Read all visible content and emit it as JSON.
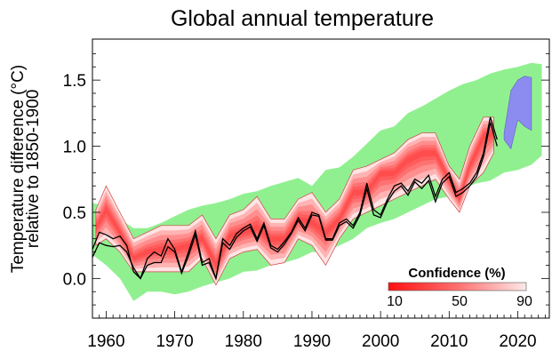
{
  "chart_data": {
    "type": "area",
    "title": "Global annual temperature",
    "ylabel": [
      "Temperature difference (°C)",
      "relative to 1850-1900"
    ],
    "xlabel": "",
    "xlim": [
      1958,
      2024.6
    ],
    "ylim": [
      -0.3,
      1.81
    ],
    "xticks": [
      1960,
      1970,
      1980,
      1990,
      2000,
      2010,
      2020
    ],
    "xtick_labels": [
      "1960",
      "1970",
      "1980",
      "1990",
      "2000",
      "2010",
      "2020"
    ],
    "yticks": [
      0.0,
      0.5,
      1.0,
      1.5
    ],
    "ytick_labels": [
      "0.0",
      "0.5",
      "1.0",
      "1.5"
    ],
    "grid": false,
    "colors": {
      "green_band": "#90f090",
      "red_band": "#ff2020",
      "observations": "#000000",
      "blue_band": "#8c8cf0"
    },
    "green_band": {
      "x": [
        1958,
        1960,
        1962,
        1964,
        1966,
        1968,
        1970,
        1972,
        1974,
        1976,
        1978,
        1980,
        1982,
        1984,
        1986,
        1988,
        1990,
        1992,
        1994,
        1996,
        1998,
        2000,
        2002,
        2004,
        2006,
        2008,
        2010,
        2012,
        2014,
        2016,
        2018,
        2020,
        2022,
        2023.5
      ],
      "upper": [
        0.57,
        0.55,
        0.45,
        0.38,
        0.38,
        0.42,
        0.47,
        0.52,
        0.55,
        0.57,
        0.6,
        0.64,
        0.66,
        0.7,
        0.73,
        0.76,
        0.7,
        0.82,
        0.84,
        0.92,
        1.02,
        1.12,
        1.15,
        1.25,
        1.3,
        1.36,
        1.42,
        1.47,
        1.5,
        1.55,
        1.58,
        1.6,
        1.63,
        1.62
      ],
      "lower": [
        0.18,
        0.1,
        0.0,
        -0.17,
        -0.1,
        -0.1,
        -0.12,
        -0.1,
        -0.06,
        -0.03,
        0.0,
        0.05,
        0.06,
        0.1,
        0.12,
        0.15,
        0.2,
        0.2,
        0.25,
        0.3,
        0.38,
        0.42,
        0.45,
        0.5,
        0.55,
        0.6,
        0.62,
        0.68,
        0.72,
        0.74,
        0.8,
        0.82,
        0.86,
        0.93
      ]
    },
    "red_band": {
      "x": [
        1958.5,
        1960,
        1962,
        1964,
        1966,
        1968,
        1970,
        1972,
        1974,
        1976,
        1978,
        1980,
        1982,
        1984,
        1986,
        1988,
        1990,
        1992,
        1994,
        1996,
        1998,
        2000,
        2002,
        2004,
        2006,
        2008,
        2010,
        2011.5,
        2013,
        2015,
        2016.5
      ],
      "center": [
        0.38,
        0.52,
        0.35,
        0.15,
        0.2,
        0.22,
        0.22,
        0.25,
        0.3,
        0.1,
        0.32,
        0.35,
        0.38,
        0.3,
        0.3,
        0.45,
        0.42,
        0.35,
        0.45,
        0.65,
        0.65,
        0.8,
        0.8,
        0.9,
        0.95,
        0.95,
        0.75,
        0.6,
        0.85,
        1.08,
        1.1
      ],
      "lower": [
        0.25,
        0.3,
        0.2,
        0.05,
        0.05,
        0.05,
        0.05,
        0.05,
        0.15,
        -0.05,
        0.15,
        0.2,
        0.22,
        0.1,
        0.12,
        0.3,
        0.25,
        0.1,
        0.3,
        0.45,
        0.5,
        0.55,
        0.6,
        0.65,
        0.7,
        0.75,
        0.6,
        0.5,
        0.7,
        0.8,
        0.95
      ],
      "upper": [
        0.52,
        0.7,
        0.5,
        0.3,
        0.35,
        0.4,
        0.4,
        0.4,
        0.48,
        0.3,
        0.48,
        0.52,
        0.62,
        0.45,
        0.45,
        0.6,
        0.65,
        0.5,
        0.6,
        0.82,
        0.85,
        0.9,
        0.95,
        1.05,
        1.1,
        1.1,
        0.85,
        0.75,
        1.0,
        1.22,
        1.22
      ]
    },
    "observations": {
      "x": [
        1958,
        1959,
        1960,
        1961,
        1962,
        1963,
        1964,
        1965,
        1966,
        1967,
        1968,
        1969,
        1970,
        1971,
        1972,
        1973,
        1974,
        1975,
        1976,
        1977,
        1978,
        1979,
        1980,
        1981,
        1982,
        1983,
        1984,
        1985,
        1986,
        1987,
        1988,
        1989,
        1990,
        1991,
        1992,
        1993,
        1994,
        1995,
        1996,
        1997,
        1998,
        1999,
        2000,
        2001,
        2002,
        2003,
        2004,
        2005,
        2006,
        2007,
        2008,
        2009,
        2010,
        2011,
        2012,
        2013,
        2014,
        2015,
        2016,
        2017
      ],
      "series": [
        {
          "values": [
            0.22,
            0.35,
            0.33,
            0.3,
            0.32,
            0.25,
            0.05,
            0.0,
            0.15,
            0.2,
            0.17,
            0.3,
            0.22,
            0.05,
            0.2,
            0.36,
            0.12,
            0.15,
            0.0,
            0.3,
            0.25,
            0.34,
            0.38,
            0.41,
            0.3,
            0.42,
            0.25,
            0.22,
            0.28,
            0.35,
            0.46,
            0.38,
            0.5,
            0.48,
            0.3,
            0.3,
            0.42,
            0.45,
            0.4,
            0.5,
            0.72,
            0.52,
            0.48,
            0.6,
            0.7,
            0.72,
            0.66,
            0.75,
            0.72,
            0.78,
            0.62,
            0.75,
            0.8,
            0.65,
            0.68,
            0.72,
            0.8,
            0.95,
            1.22,
            1.05
          ]
        },
        {
          "values": [
            0.16,
            0.27,
            0.25,
            0.24,
            0.25,
            0.2,
            0.08,
            0.0,
            0.1,
            0.12,
            0.12,
            0.24,
            0.2,
            0.04,
            0.17,
            0.33,
            0.1,
            0.12,
            0.0,
            0.27,
            0.22,
            0.31,
            0.36,
            0.39,
            0.28,
            0.4,
            0.23,
            0.2,
            0.26,
            0.34,
            0.44,
            0.36,
            0.48,
            0.47,
            0.29,
            0.29,
            0.4,
            0.43,
            0.38,
            0.48,
            0.68,
            0.48,
            0.46,
            0.58,
            0.66,
            0.7,
            0.63,
            0.73,
            0.68,
            0.74,
            0.58,
            0.72,
            0.77,
            0.62,
            0.65,
            0.7,
            0.77,
            0.92,
            1.18,
            1.0
          ]
        }
      ]
    },
    "blue_band": {
      "x": [
        2018,
        2019,
        2020,
        2021,
        2022
      ],
      "upper": [
        1.1,
        1.42,
        1.5,
        1.53,
        1.52
      ],
      "lower": [
        1.05,
        0.98,
        1.2,
        1.15,
        1.12
      ]
    },
    "legend": {
      "title": "Confidence (%)",
      "tick_labels": [
        "10",
        "50",
        "90"
      ],
      "placement": "bottom-right"
    }
  }
}
